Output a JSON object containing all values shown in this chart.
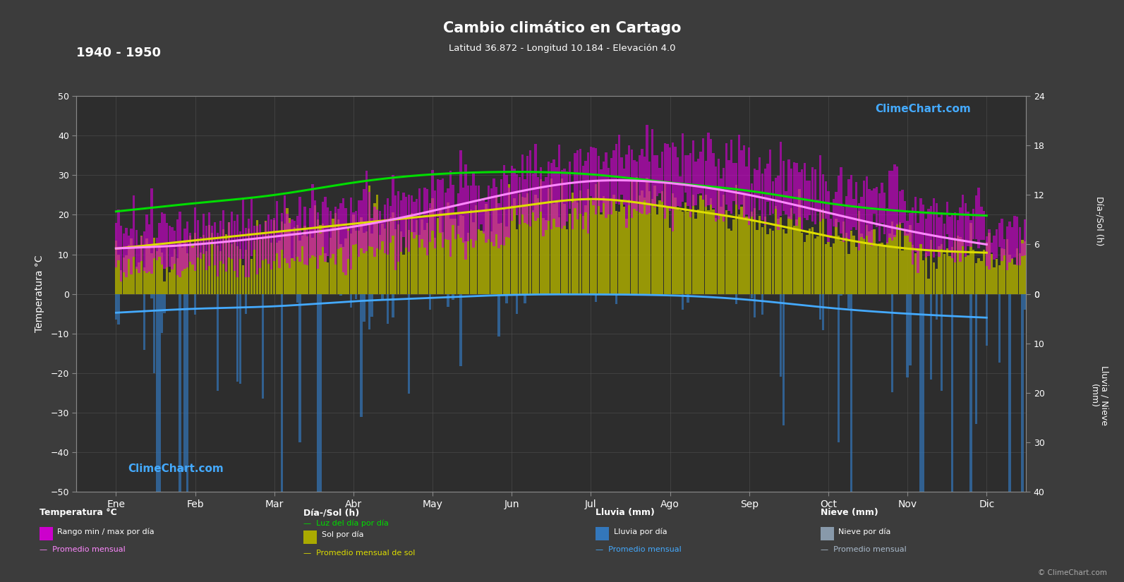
{
  "title": "Cambio climático en Cartago",
  "subtitle": "Latitud 36.872 - Longitud 10.184 - Elevación 4.0",
  "period_label": "1940 - 1950",
  "months": [
    "Ene",
    "Feb",
    "Mar",
    "Abr",
    "May",
    "Jun",
    "Jul",
    "Ago",
    "Sep",
    "Oct",
    "Nov",
    "Dic"
  ],
  "background_color": "#3c3c3c",
  "plot_background_color": "#2d2d2d",
  "grid_color": "#555555",
  "text_color": "#ffffff",
  "temp_ylim": [
    -50,
    50
  ],
  "temp_avg_monthly": [
    11.5,
    12.5,
    14.5,
    17.0,
    21.0,
    25.5,
    28.5,
    28.0,
    25.0,
    20.5,
    16.0,
    12.5
  ],
  "temp_max_monthly": [
    16.5,
    18.0,
    21.0,
    24.0,
    28.5,
    33.5,
    36.5,
    36.0,
    31.5,
    26.0,
    21.5,
    17.5
  ],
  "temp_min_monthly": [
    7.0,
    7.5,
    9.0,
    11.5,
    14.0,
    18.0,
    21.5,
    21.5,
    19.0,
    15.0,
    11.0,
    8.0
  ],
  "sun_daylight_monthly": [
    10.0,
    11.0,
    12.0,
    13.5,
    14.5,
    14.8,
    14.5,
    13.5,
    12.5,
    11.0,
    10.0,
    9.5
  ],
  "sun_sol_monthly": [
    5.5,
    6.5,
    7.5,
    8.5,
    9.5,
    10.5,
    11.5,
    10.5,
    9.0,
    7.0,
    5.5,
    5.0
  ],
  "rain_avg_monthly": [
    3.8,
    3.0,
    2.5,
    1.5,
    0.8,
    0.2,
    0.1,
    0.3,
    1.2,
    2.8,
    4.0,
    4.8
  ],
  "colors": {
    "temp_range_bar": "#cc00cc",
    "temp_avg_line": "#ff88ff",
    "sun_daylight_line": "#00dd00",
    "sun_sol_bar": "#aaaa00",
    "sun_sol_line": "#dddd00",
    "rain_bar": "#3377bb",
    "rain_avg_line": "#44aaff",
    "snow_bar": "#8899aa",
    "snow_avg_line": "#aabbcc"
  },
  "copyright_text": "© ClimeChart.com"
}
